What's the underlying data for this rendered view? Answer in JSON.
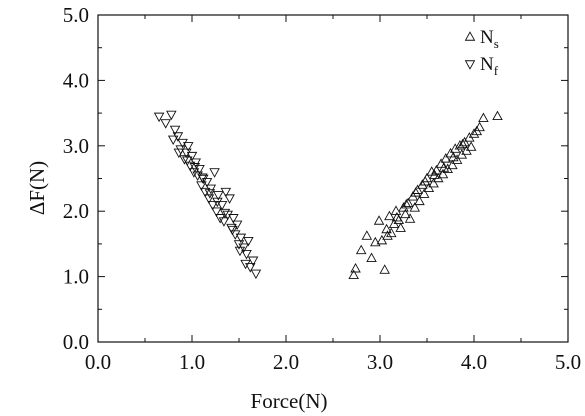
{
  "chart_data": {
    "type": "scatter",
    "title": "",
    "xlabel": "Force(N)",
    "ylabel": "ΔF(N)",
    "xlim": [
      0.0,
      5.0
    ],
    "ylim": [
      0.0,
      5.0
    ],
    "xticks": [
      "0.0",
      "1.0",
      "2.0",
      "3.0",
      "4.0",
      "5.0"
    ],
    "yticks": [
      "0.0",
      "1.0",
      "2.0",
      "3.0",
      "4.0",
      "5.0"
    ],
    "grid": false,
    "legend_position": "top-right",
    "series": [
      {
        "name": "N",
        "subscript": "s",
        "marker": "triangle-up",
        "x": [
          2.72,
          2.74,
          2.8,
          2.86,
          2.91,
          2.95,
          2.99,
          3.02,
          3.05,
          3.07,
          3.1,
          3.12,
          3.15,
          3.17,
          3.2,
          3.22,
          3.25,
          3.27,
          3.3,
          3.32,
          3.35,
          3.37,
          3.4,
          3.42,
          3.45,
          3.47,
          3.5,
          3.52,
          3.55,
          3.57,
          3.6,
          3.62,
          3.65,
          3.67,
          3.7,
          3.72,
          3.75,
          3.77,
          3.8,
          3.82,
          3.85,
          3.87,
          3.9,
          3.92,
          3.95,
          3.97,
          4.0,
          4.03,
          4.06,
          4.1,
          4.25,
          3.08,
          3.18,
          3.28,
          3.38,
          3.48,
          3.58,
          3.68,
          3.78,
          3.88
        ],
        "y": [
          1.02,
          1.12,
          1.4,
          1.62,
          1.28,
          1.52,
          1.85,
          1.55,
          1.1,
          1.72,
          1.92,
          1.66,
          1.8,
          2.0,
          1.86,
          1.74,
          2.05,
          1.95,
          2.12,
          1.88,
          2.22,
          2.05,
          2.32,
          2.15,
          2.4,
          2.26,
          2.5,
          2.35,
          2.6,
          2.42,
          2.62,
          2.5,
          2.72,
          2.56,
          2.8,
          2.64,
          2.88,
          2.7,
          2.95,
          2.78,
          3.0,
          2.86,
          3.05,
          2.92,
          3.12,
          2.98,
          3.18,
          3.22,
          3.28,
          3.42,
          3.45,
          1.62,
          1.9,
          2.1,
          2.28,
          2.45,
          2.55,
          2.66,
          2.82,
          3.02
        ]
      },
      {
        "name": "N",
        "subscript": "f",
        "marker": "triangle-down",
        "x": [
          0.65,
          0.72,
          0.78,
          0.8,
          0.82,
          0.85,
          0.88,
          0.9,
          0.92,
          0.94,
          0.96,
          0.98,
          1.0,
          1.02,
          1.04,
          1.06,
          1.08,
          1.1,
          1.12,
          1.14,
          1.16,
          1.18,
          1.2,
          1.22,
          1.24,
          1.26,
          1.28,
          1.3,
          1.32,
          1.34,
          1.36,
          1.38,
          1.4,
          1.42,
          1.44,
          1.46,
          1.48,
          1.5,
          1.52,
          1.55,
          1.58,
          1.6,
          1.62,
          1.65,
          1.68,
          0.86,
          0.95,
          1.03,
          1.11,
          1.19,
          1.27,
          1.35,
          1.43,
          1.51,
          1.57
        ],
        "y": [
          3.45,
          3.35,
          3.48,
          3.1,
          3.25,
          3.15,
          2.95,
          3.05,
          2.8,
          2.9,
          3.0,
          2.7,
          2.85,
          2.6,
          2.75,
          2.55,
          2.65,
          2.4,
          2.5,
          2.3,
          2.45,
          2.2,
          2.35,
          2.1,
          2.6,
          2.0,
          2.25,
          1.9,
          2.1,
          1.85,
          2.3,
          1.95,
          2.2,
          1.75,
          1.9,
          1.65,
          1.8,
          1.5,
          1.6,
          1.45,
          1.35,
          1.55,
          1.15,
          1.25,
          1.05,
          2.9,
          2.78,
          2.68,
          2.52,
          2.28,
          2.15,
          1.98,
          1.72,
          1.4,
          1.2
        ]
      }
    ]
  }
}
